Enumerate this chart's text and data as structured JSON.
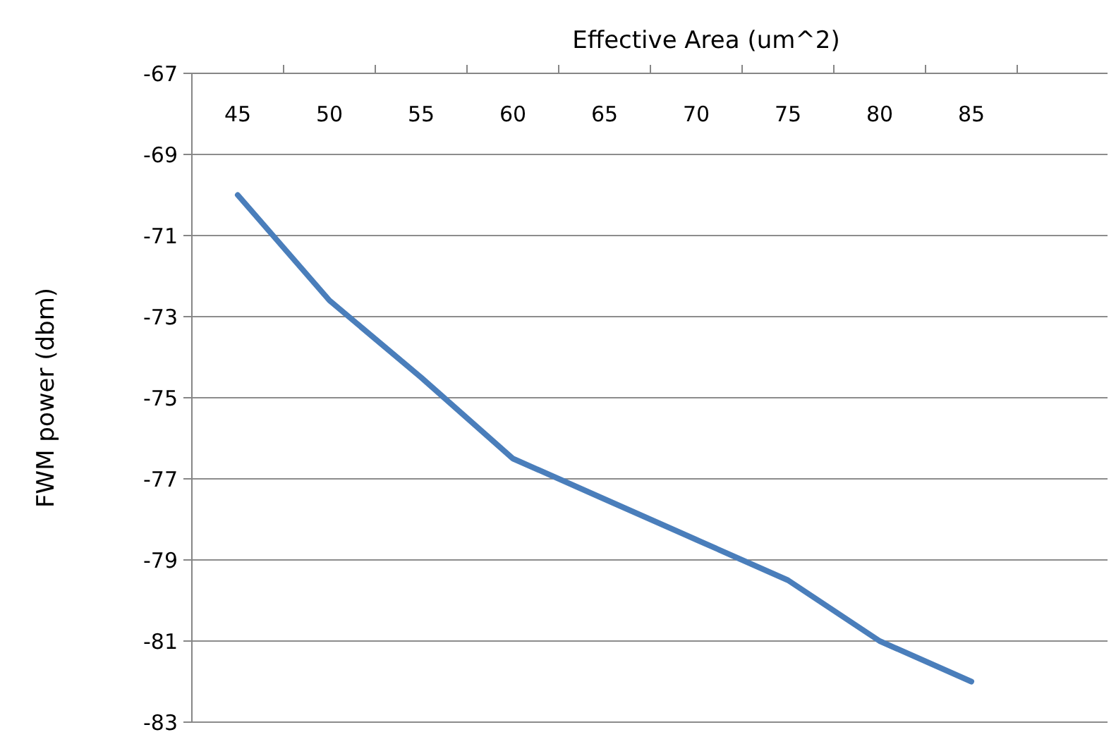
{
  "chart_data": {
    "type": "line",
    "xlabel": "Effective Area (um^2)",
    "ylabel": "FWM power (dbm)",
    "categories": [
      "45",
      "50",
      "55",
      "60",
      "65",
      "70",
      "75",
      "80",
      "85"
    ],
    "series": [
      {
        "color": "#4a7ebb",
        "values": [
          -70,
          -72.6,
          -74.5,
          -76.5,
          -77.5,
          -78.5,
          -79.5,
          -81,
          -82
        ]
      }
    ],
    "ylim": [
      -83,
      -67
    ],
    "yticks": [
      -83,
      -81,
      -79,
      -77,
      -75,
      -73,
      -71,
      -69,
      -67
    ],
    "grid": "y",
    "marker": "none",
    "line_style": "solid"
  }
}
